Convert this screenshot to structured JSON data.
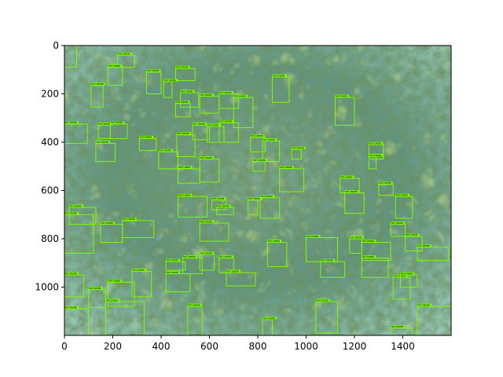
{
  "figure": {
    "image_description_colors": {
      "water_light": "#9fd6c8",
      "water_mid": "#5f9f8f",
      "seagrass_dark": "#2f4a24",
      "algae_bright": "#8fbf3a",
      "box_color": "#7cfc00"
    },
    "axes": {
      "x_ticks": [
        "0",
        "200",
        "400",
        "600",
        "800",
        "1000",
        "1200",
        "1400"
      ],
      "y_ticks": [
        "0",
        "200",
        "400",
        "600",
        "800",
        "1000"
      ],
      "x_range": [
        0,
        1600
      ],
      "y_range": [
        1200,
        0
      ]
    },
    "detection_label": "halimeda",
    "detections": [
      {
        "x0": 0,
        "y0": 0,
        "x1": 50,
        "y1": 90
      },
      {
        "x0": 220,
        "y0": 40,
        "x1": 290,
        "y1": 90
      },
      {
        "x0": 180,
        "y0": 90,
        "x1": 240,
        "y1": 165
      },
      {
        "x0": 340,
        "y0": 110,
        "x1": 400,
        "y1": 200
      },
      {
        "x0": 460,
        "y0": 95,
        "x1": 540,
        "y1": 145
      },
      {
        "x0": 410,
        "y0": 150,
        "x1": 445,
        "y1": 215
      },
      {
        "x0": 110,
        "y0": 165,
        "x1": 160,
        "y1": 255
      },
      {
        "x0": 480,
        "y0": 195,
        "x1": 555,
        "y1": 255
      },
      {
        "x0": 460,
        "y0": 240,
        "x1": 520,
        "y1": 295
      },
      {
        "x0": 560,
        "y0": 210,
        "x1": 640,
        "y1": 280
      },
      {
        "x0": 640,
        "y0": 200,
        "x1": 720,
        "y1": 260
      },
      {
        "x0": 700,
        "y0": 215,
        "x1": 780,
        "y1": 340
      },
      {
        "x0": 860,
        "y0": 130,
        "x1": 930,
        "y1": 235
      },
      {
        "x0": 1120,
        "y0": 215,
        "x1": 1200,
        "y1": 330
      },
      {
        "x0": 0,
        "y0": 325,
        "x1": 95,
        "y1": 405
      },
      {
        "x0": 140,
        "y0": 330,
        "x1": 190,
        "y1": 385
      },
      {
        "x0": 190,
        "y0": 325,
        "x1": 260,
        "y1": 385
      },
      {
        "x0": 130,
        "y0": 405,
        "x1": 210,
        "y1": 480
      },
      {
        "x0": 310,
        "y0": 385,
        "x1": 380,
        "y1": 435
      },
      {
        "x0": 390,
        "y0": 440,
        "x1": 470,
        "y1": 510
      },
      {
        "x0": 465,
        "y0": 370,
        "x1": 540,
        "y1": 460
      },
      {
        "x0": 530,
        "y0": 330,
        "x1": 600,
        "y1": 390
      },
      {
        "x0": 590,
        "y0": 335,
        "x1": 660,
        "y1": 400
      },
      {
        "x0": 640,
        "y0": 320,
        "x1": 720,
        "y1": 400
      },
      {
        "x0": 770,
        "y0": 380,
        "x1": 830,
        "y1": 440
      },
      {
        "x0": 820,
        "y0": 395,
        "x1": 890,
        "y1": 480
      },
      {
        "x0": 780,
        "y0": 480,
        "x1": 830,
        "y1": 520
      },
      {
        "x0": 940,
        "y0": 430,
        "x1": 980,
        "y1": 470
      },
      {
        "x0": 470,
        "y0": 510,
        "x1": 560,
        "y1": 570
      },
      {
        "x0": 560,
        "y0": 470,
        "x1": 640,
        "y1": 565
      },
      {
        "x0": 890,
        "y0": 510,
        "x1": 990,
        "y1": 605
      },
      {
        "x0": 1260,
        "y0": 410,
        "x1": 1320,
        "y1": 470
      },
      {
        "x0": 1260,
        "y0": 460,
        "x1": 1290,
        "y1": 510
      },
      {
        "x0": 1140,
        "y0": 550,
        "x1": 1220,
        "y1": 610
      },
      {
        "x0": 1300,
        "y0": 575,
        "x1": 1360,
        "y1": 620
      },
      {
        "x0": 1160,
        "y0": 610,
        "x1": 1240,
        "y1": 695
      },
      {
        "x0": 1370,
        "y0": 625,
        "x1": 1440,
        "y1": 715
      },
      {
        "x0": 470,
        "y0": 625,
        "x1": 590,
        "y1": 710
      },
      {
        "x0": 610,
        "y0": 640,
        "x1": 670,
        "y1": 680
      },
      {
        "x0": 630,
        "y0": 670,
        "x1": 700,
        "y1": 700
      },
      {
        "x0": 760,
        "y0": 640,
        "x1": 800,
        "y1": 700
      },
      {
        "x0": 810,
        "y0": 630,
        "x1": 890,
        "y1": 715
      },
      {
        "x0": 20,
        "y0": 670,
        "x1": 130,
        "y1": 740
      },
      {
        "x0": 0,
        "y0": 700,
        "x1": 120,
        "y1": 860
      },
      {
        "x0": 150,
        "y0": 740,
        "x1": 240,
        "y1": 815
      },
      {
        "x0": 240,
        "y0": 725,
        "x1": 370,
        "y1": 795
      },
      {
        "x0": 560,
        "y0": 735,
        "x1": 680,
        "y1": 810
      },
      {
        "x0": 840,
        "y0": 815,
        "x1": 920,
        "y1": 915
      },
      {
        "x0": 1000,
        "y0": 795,
        "x1": 1130,
        "y1": 895
      },
      {
        "x0": 1060,
        "y0": 895,
        "x1": 1160,
        "y1": 960
      },
      {
        "x0": 1180,
        "y0": 800,
        "x1": 1230,
        "y1": 860
      },
      {
        "x0": 1230,
        "y0": 815,
        "x1": 1350,
        "y1": 890
      },
      {
        "x0": 1350,
        "y0": 740,
        "x1": 1410,
        "y1": 790
      },
      {
        "x0": 1410,
        "y0": 790,
        "x1": 1480,
        "y1": 850
      },
      {
        "x0": 1460,
        "y0": 835,
        "x1": 1590,
        "y1": 890
      },
      {
        "x0": 1230,
        "y0": 880,
        "x1": 1340,
        "y1": 960
      },
      {
        "x0": 1360,
        "y0": 960,
        "x1": 1430,
        "y1": 1050
      },
      {
        "x0": 1390,
        "y0": 950,
        "x1": 1460,
        "y1": 1000
      },
      {
        "x0": 420,
        "y0": 895,
        "x1": 500,
        "y1": 930
      },
      {
        "x0": 420,
        "y0": 945,
        "x1": 520,
        "y1": 1020
      },
      {
        "x0": 490,
        "y0": 880,
        "x1": 570,
        "y1": 945
      },
      {
        "x0": 560,
        "y0": 865,
        "x1": 620,
        "y1": 930
      },
      {
        "x0": 640,
        "y0": 880,
        "x1": 700,
        "y1": 940
      },
      {
        "x0": 670,
        "y0": 940,
        "x1": 790,
        "y1": 995
      },
      {
        "x0": 280,
        "y0": 935,
        "x1": 360,
        "y1": 1040
      },
      {
        "x0": 180,
        "y0": 980,
        "x1": 290,
        "y1": 1080
      },
      {
        "x0": 0,
        "y0": 950,
        "x1": 80,
        "y1": 1040
      },
      {
        "x0": 100,
        "y0": 1010,
        "x1": 170,
        "y1": 1085
      },
      {
        "x0": 170,
        "y0": 1060,
        "x1": 330,
        "y1": 1200
      },
      {
        "x0": 0,
        "y0": 1090,
        "x1": 100,
        "y1": 1200
      },
      {
        "x0": 510,
        "y0": 1080,
        "x1": 570,
        "y1": 1200
      },
      {
        "x0": 820,
        "y0": 1135,
        "x1": 860,
        "y1": 1200
      },
      {
        "x0": 1040,
        "y0": 1060,
        "x1": 1130,
        "y1": 1190
      },
      {
        "x0": 1350,
        "y0": 1170,
        "x1": 1440,
        "y1": 1200
      },
      {
        "x0": 1460,
        "y0": 1080,
        "x1": 1600,
        "y1": 1200
      }
    ]
  }
}
